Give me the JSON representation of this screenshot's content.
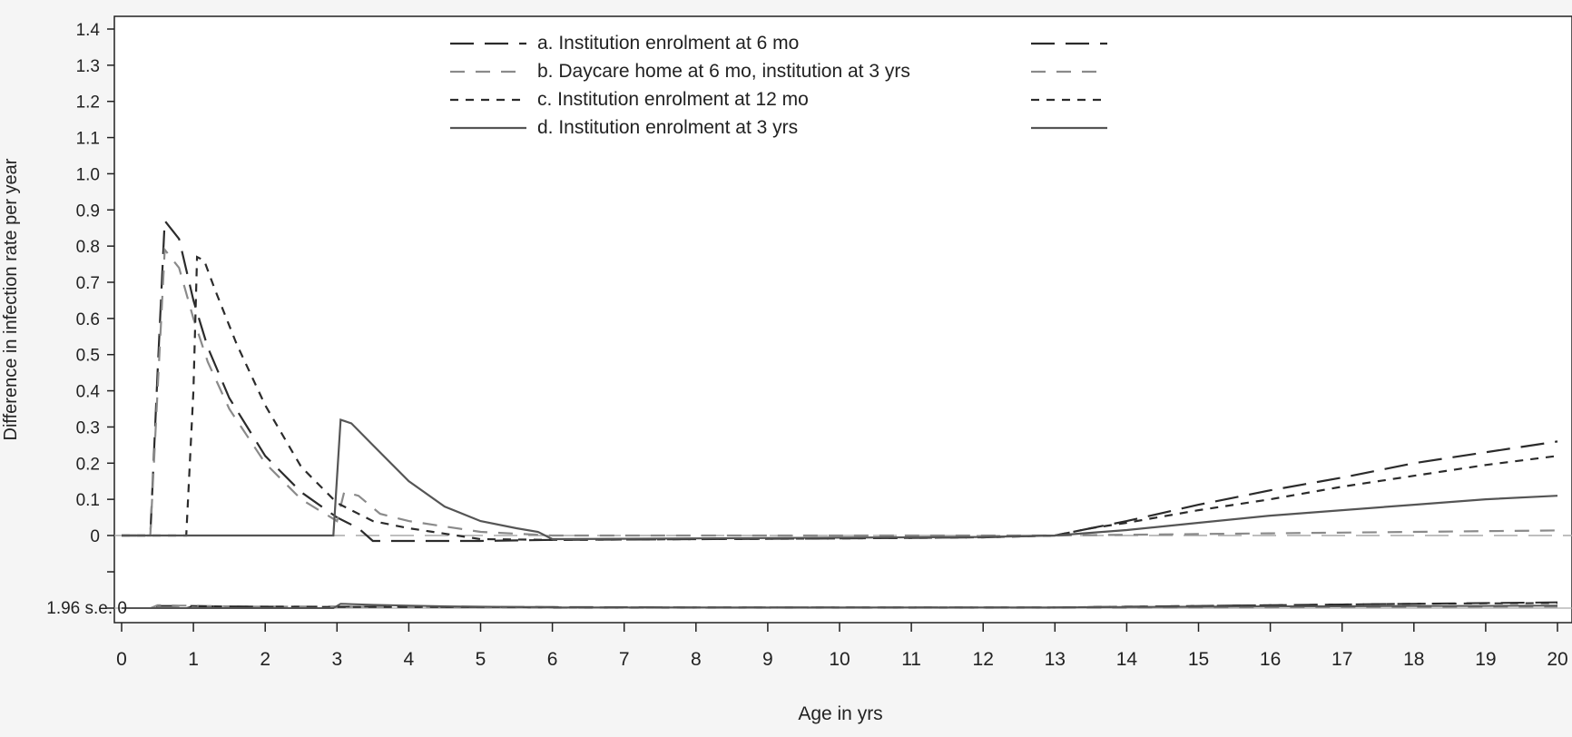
{
  "chart_data": {
    "type": "line",
    "title": "",
    "xlabel": "Age in yrs",
    "ylabel": "Difference in infection rate per year",
    "xlim": [
      0,
      20
    ],
    "ylim": [
      0,
      1.4
    ],
    "x_ticks": [
      "0",
      "1",
      "2",
      "3",
      "4",
      "5",
      "6",
      "7",
      "8",
      "9",
      "10",
      "11",
      "12",
      "13",
      "14",
      "15",
      "16",
      "17",
      "18",
      "19",
      "20"
    ],
    "y_ticks": [
      "0",
      "0.1",
      "0.2",
      "0.3",
      "0.4",
      "0.5",
      "0.6",
      "0.7",
      "0.8",
      "0.9",
      "1.0",
      "1.1",
      "1.2",
      "1.3",
      "1.4"
    ],
    "se_panel_label": "1.96 s.e. 0",
    "colors": {
      "dark": "#2b2b2b",
      "gray": "#8a8a8a",
      "mid": "#555555",
      "ref": "#aaaaaa",
      "bg": "#ffffff"
    },
    "series": [
      {
        "name": "a. Institution enrolment at 6 mo",
        "color": "#2b2b2b",
        "dash": "long",
        "x": [
          0,
          0.4,
          0.5,
          0.6,
          0.8,
          1.0,
          1.2,
          1.5,
          2.0,
          2.5,
          3.0,
          3.3,
          3.5,
          4,
          5,
          6,
          8,
          10,
          12,
          13,
          13.5,
          14,
          15,
          16,
          17,
          18,
          19,
          20
        ],
        "y": [
          0,
          0,
          0.45,
          0.87,
          0.82,
          0.65,
          0.52,
          0.38,
          0.22,
          0.12,
          0.05,
          0.02,
          -0.015,
          -0.015,
          -0.015,
          -0.012,
          -0.01,
          -0.008,
          -0.005,
          0,
          0.02,
          0.04,
          0.085,
          0.125,
          0.16,
          0.2,
          0.23,
          0.26
        ],
        "se": [
          0,
          0,
          0.006,
          0.006,
          0.006,
          0.006,
          0.005,
          0.005,
          0.004,
          0.004,
          0.004,
          0.004,
          0.004,
          0.003,
          0.003,
          0.003,
          0.002,
          0.002,
          0.002,
          0.002,
          0.003,
          0.004,
          0.006,
          0.008,
          0.01,
          0.012,
          0.014,
          0.016
        ]
      },
      {
        "name": "b. Daycare home at 6 mo, institution at 3 yrs",
        "color": "#8a8a8a",
        "dash": "medium",
        "x": [
          0,
          0.4,
          0.5,
          0.6,
          0.8,
          1.0,
          1.2,
          1.5,
          2.0,
          2.5,
          3.0,
          3.1,
          3.3,
          3.6,
          4,
          5,
          6,
          8,
          10,
          12,
          13,
          14,
          15,
          16,
          17,
          18,
          19,
          20
        ],
        "y": [
          0,
          0,
          0.4,
          0.79,
          0.74,
          0.6,
          0.48,
          0.35,
          0.2,
          0.1,
          0.04,
          0.12,
          0.11,
          0.06,
          0.04,
          0.01,
          0,
          0,
          0,
          0,
          0,
          0.002,
          0.004,
          0.006,
          0.008,
          0.01,
          0.012,
          0.014
        ],
        "se": [
          0,
          0,
          0.008,
          0.008,
          0.007,
          0.007,
          0.006,
          0.005,
          0.004,
          0.004,
          0.003,
          0.004,
          0.004,
          0.003,
          0.003,
          0.002,
          0.001,
          0.001,
          0.001,
          0.001,
          0.001,
          0.001,
          0.002,
          0.002,
          0.003,
          0.003,
          0.004,
          0.004
        ]
      },
      {
        "name": "c. Institution enrolment at 12 mo",
        "color": "#2b2b2b",
        "dash": "short",
        "x": [
          0,
          0.9,
          1.0,
          1.05,
          1.15,
          1.3,
          1.6,
          2.0,
          2.5,
          3.0,
          3.5,
          4,
          5,
          6,
          8,
          10,
          12,
          13,
          13.5,
          14,
          15,
          16,
          17,
          18,
          19,
          20
        ],
        "y": [
          0,
          0,
          0.4,
          0.77,
          0.76,
          0.68,
          0.53,
          0.36,
          0.19,
          0.09,
          0.04,
          0.02,
          -0.01,
          -0.012,
          -0.01,
          -0.008,
          -0.005,
          0,
          0.02,
          0.035,
          0.07,
          0.1,
          0.135,
          0.165,
          0.195,
          0.22
        ],
        "se": [
          0,
          0,
          0.005,
          0.005,
          0.005,
          0.005,
          0.004,
          0.004,
          0.004,
          0.003,
          0.003,
          0.003,
          0.003,
          0.002,
          0.002,
          0.002,
          0.002,
          0.002,
          0.003,
          0.004,
          0.006,
          0.008,
          0.01,
          0.012,
          0.013,
          0.014
        ]
      },
      {
        "name": "d. Institution enrolment at 3 yrs",
        "color": "#555555",
        "dash": "solid",
        "x": [
          0,
          2.95,
          3.05,
          3.2,
          3.5,
          4.0,
          4.5,
          5.0,
          5.5,
          5.8,
          6,
          8,
          10,
          12,
          13,
          14,
          15,
          16,
          17,
          18,
          19,
          20
        ],
        "y": [
          0,
          0,
          0.32,
          0.31,
          0.25,
          0.15,
          0.08,
          0.04,
          0.02,
          0.01,
          -0.01,
          -0.008,
          -0.006,
          -0.004,
          0,
          0.015,
          0.035,
          0.055,
          0.07,
          0.085,
          0.1,
          0.11
        ],
        "se": [
          0,
          0,
          0.012,
          0.011,
          0.009,
          0.007,
          0.005,
          0.004,
          0.003,
          0.003,
          0.002,
          0.002,
          0.002,
          0.002,
          0.002,
          0.003,
          0.004,
          0.005,
          0.005,
          0.006,
          0.006,
          0.007
        ]
      }
    ]
  }
}
